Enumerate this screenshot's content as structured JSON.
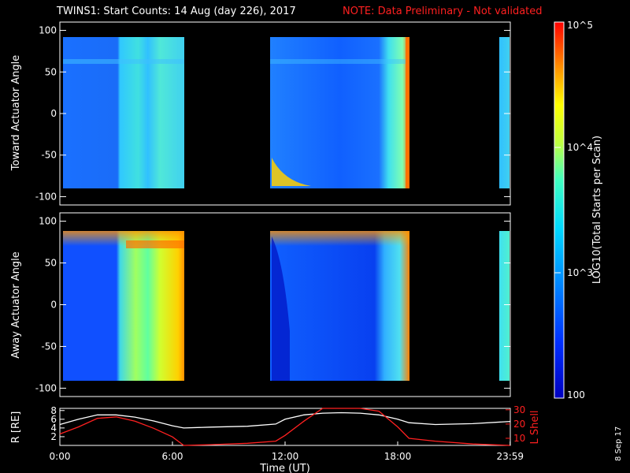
{
  "title": "TWINS1: Start Counts: 14 Aug (day 226), 2017",
  "note": "NOTE: Data Preliminary - Not validated",
  "date_stamp": "8 Sep 17",
  "chart_data": [
    {
      "type": "heatmap",
      "ylabel": "Toward Actuator Angle",
      "ylim": [
        -110,
        110
      ],
      "yticks": [
        "100",
        "50",
        "0",
        "-50",
        "-100"
      ],
      "segments": [
        {
          "x0": "00:00",
          "x1": "06:55"
        },
        {
          "x0": "11:25",
          "x1": "18:45"
        },
        {
          "x0": "23:40",
          "x1": "23:59"
        }
      ]
    },
    {
      "type": "heatmap",
      "ylabel": "Away Actuator Angle",
      "ylim": [
        -110,
        110
      ],
      "yticks": [
        "100",
        "50",
        "0",
        "-50",
        "-100"
      ],
      "segments": [
        {
          "x0": "00:00",
          "x1": "06:55"
        },
        {
          "x0": "11:25",
          "x1": "18:45"
        },
        {
          "x0": "23:40",
          "x1": "23:59"
        }
      ]
    },
    {
      "type": "line",
      "ylabel": "R [RE]",
      "y2label": "L Shell",
      "xlabel": "Time (UT)",
      "xticks": [
        "0:00",
        "6:00",
        "12:00",
        "18:00",
        "23:59"
      ],
      "yticks": [
        "8",
        "6",
        "4",
        "2"
      ],
      "y2ticks": [
        "30",
        "20",
        "10"
      ],
      "x_hours": [
        0,
        1,
        2,
        3,
        4,
        5,
        6,
        6.6,
        8,
        10,
        11.5,
        12,
        13,
        14,
        15,
        16,
        17,
        18,
        18.6,
        20,
        22,
        23.99
      ],
      "series": [
        {
          "values": [
            4.8,
            6.0,
            7.0,
            7.0,
            6.5,
            5.6,
            4.5,
            4.0,
            4.2,
            4.4,
            4.9,
            6.0,
            7.0,
            7.4,
            7.5,
            7.4,
            7.0,
            6.0,
            5.2,
            4.8,
            5.0,
            5.5
          ]
        },
        {
          "values": [
            13,
            18,
            24,
            25,
            22,
            17,
            11,
            5,
            5.5,
            6.5,
            8,
            12,
            22,
            31,
            31,
            31,
            29,
            18,
            10,
            8,
            6,
            5
          ]
        }
      ],
      "color_lshell": "#ff2020",
      "color_r": "#ffffff"
    }
  ],
  "colorbar": {
    "label": "LOG10(Total Starts per Scan)",
    "ticks": [
      "10^5",
      "10^4",
      "10^3",
      "100"
    ],
    "range": [
      100,
      100000
    ]
  }
}
